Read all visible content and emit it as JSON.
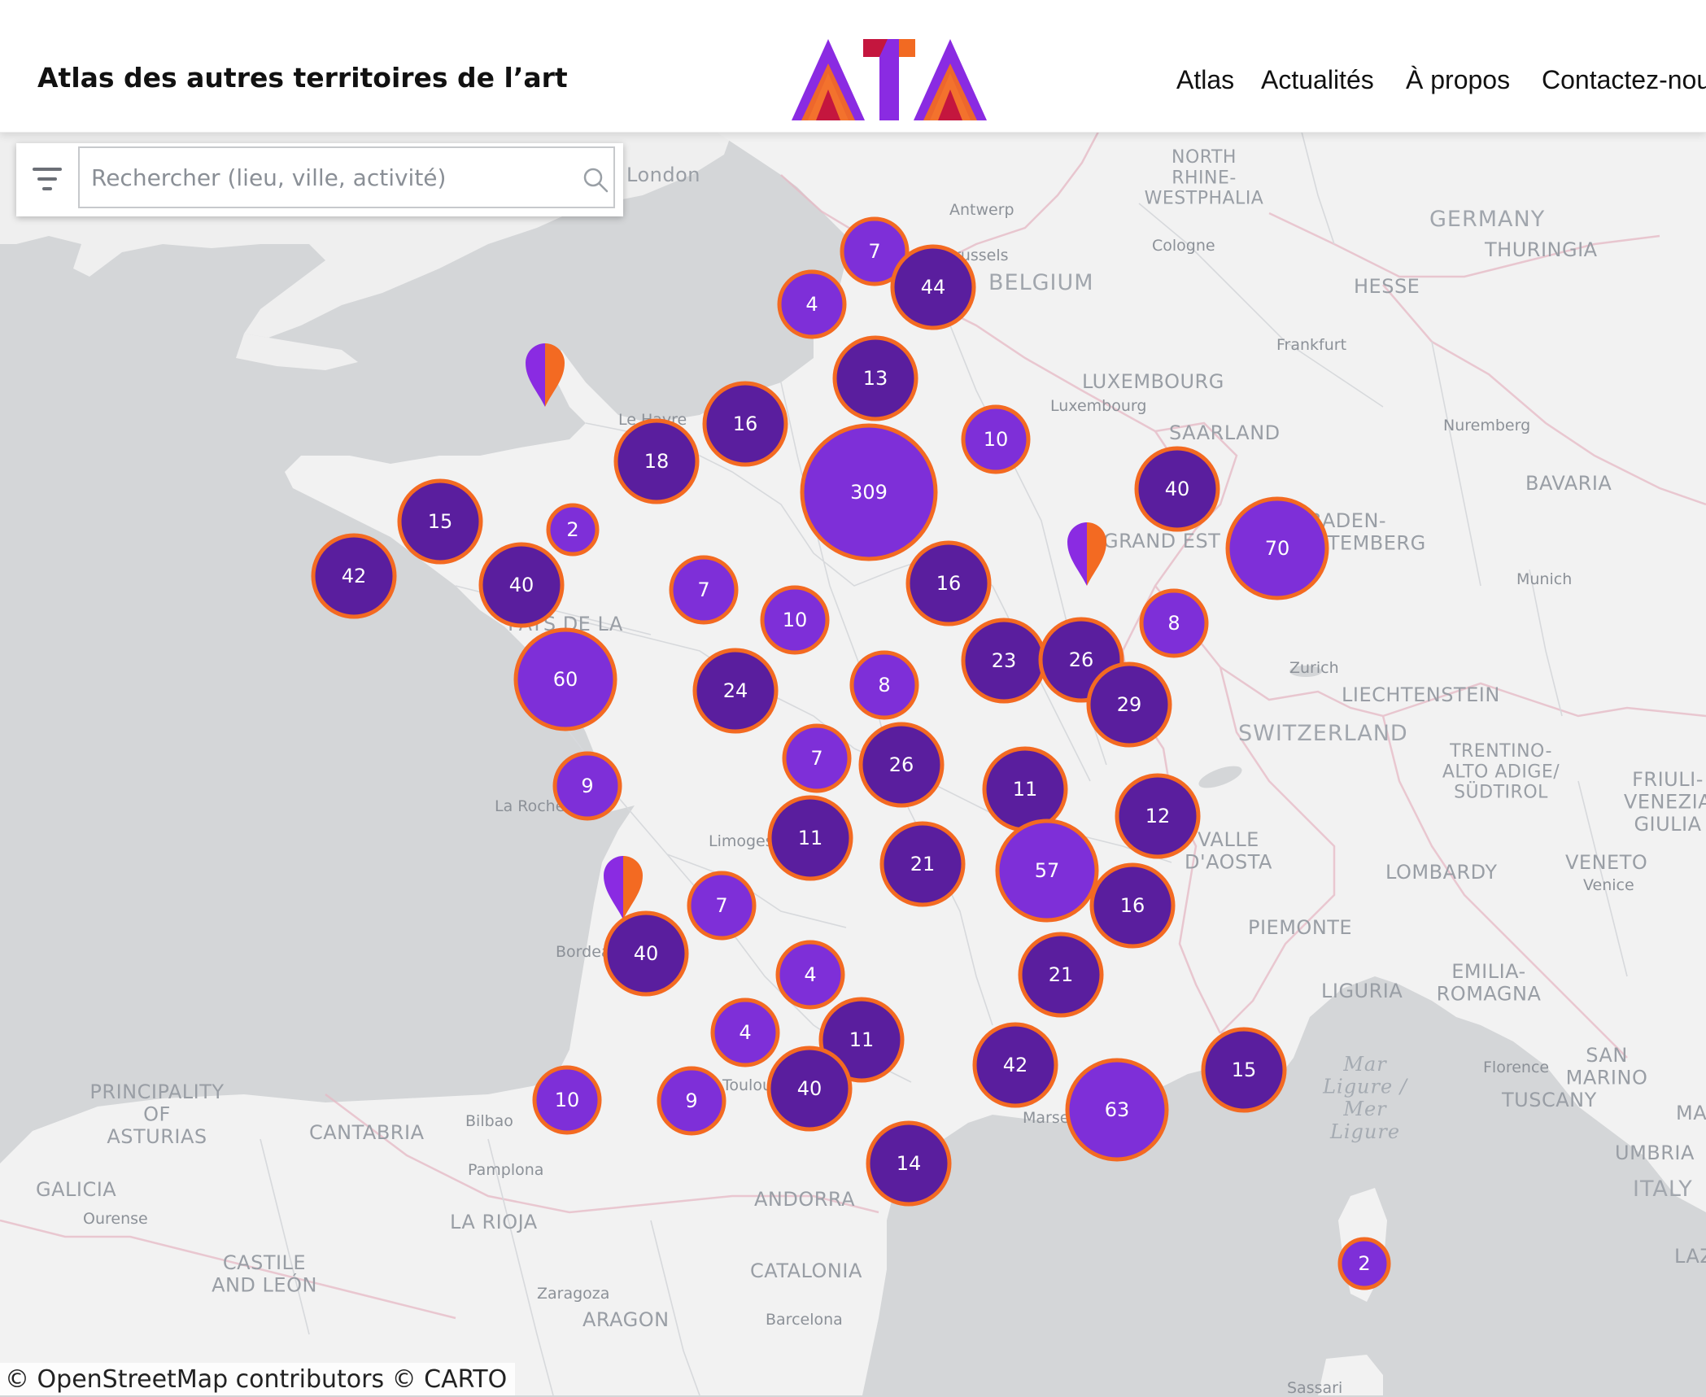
{
  "header": {
    "site_title": "Atlas des autres territoires de l’art",
    "logo_text": "ATA",
    "nav": [
      {
        "label": "Atlas"
      },
      {
        "label": "Actualités"
      },
      {
        "label": "À propos"
      },
      {
        "label": "Contactez-nous"
      }
    ]
  },
  "search": {
    "placeholder": "Rechercher (lieu, ville, activité)",
    "value": ""
  },
  "attribution": "© OpenStreetMap contributors © CARTO",
  "colors": {
    "cluster_dark": "#5a1e9e",
    "cluster_light": "#7e2fd8",
    "cluster_border": "#f36a22",
    "water": "#d4d6d8",
    "land": "#f2f2f2"
  },
  "map_labels": {
    "countries": [
      "GERMANY",
      "BELGIUM",
      "LUXEMBOURG",
      "SWITZERLAND",
      "LIECHTENSTEIN",
      "ANDORRA",
      "ITALY"
    ],
    "regions": [
      "NORTH RHINE-WESTPHALIA",
      "THURINGIA",
      "HESSE",
      "SAARLAND",
      "BAVARIA",
      "BADEN-WÜRTTEMBERG",
      "GRAND EST",
      "PAYS DE LA LOIRE",
      "TRENTINO-ALTO ADIGE/SÜDTIROL",
      "VALLE D'AOSTA",
      "LOMBARDY",
      "VENETO",
      "PIEMONTE",
      "LIGURIA",
      "EMILIA-ROMAGNA",
      "TUSCANY",
      "SAN MARINO",
      "UMBRIA",
      "PRINCIPALITY OF ASTURIAS",
      "CANTABRIA",
      "GALICIA",
      "LA RIOJA",
      "CASTILE AND LEÓN",
      "CATALONIA",
      "ARAGON",
      "FRIULI-VENEZIA GIULIA",
      "MARCHE",
      "LAZIO"
    ],
    "cities": [
      "Antwerp",
      "Brussels",
      "Cologne",
      "Frankfurt",
      "Luxembourg",
      "Nuremberg",
      "Munich",
      "Zurich",
      "Venice",
      "Florence",
      "Bilbao",
      "Pamplona",
      "Ourense",
      "Zaragoza",
      "Barcelona",
      "Sassari",
      "Le Havre",
      "La Rochelle",
      "Limoges",
      "Bordeaux",
      "Toulouse",
      "Marseille",
      "London"
    ],
    "seas": [
      "Mar Ligure / Mer Ligure"
    ]
  },
  "clusters": [
    {
      "count": "7",
      "tone": "light"
    },
    {
      "count": "44",
      "tone": "dark"
    },
    {
      "count": "4",
      "tone": "light"
    },
    {
      "count": "13",
      "tone": "dark"
    },
    {
      "count": "16",
      "tone": "dark"
    },
    {
      "count": "10",
      "tone": "light"
    },
    {
      "count": "18",
      "tone": "dark"
    },
    {
      "count": "309",
      "tone": "light"
    },
    {
      "count": "40",
      "tone": "dark"
    },
    {
      "count": "15",
      "tone": "dark"
    },
    {
      "count": "2",
      "tone": "light"
    },
    {
      "count": "70",
      "tone": "light"
    },
    {
      "count": "42",
      "tone": "dark"
    },
    {
      "count": "40",
      "tone": "dark"
    },
    {
      "count": "7",
      "tone": "light"
    },
    {
      "count": "16",
      "tone": "dark"
    },
    {
      "count": "10",
      "tone": "light"
    },
    {
      "count": "8",
      "tone": "light"
    },
    {
      "count": "60",
      "tone": "light"
    },
    {
      "count": "24",
      "tone": "dark"
    },
    {
      "count": "8",
      "tone": "light"
    },
    {
      "count": "23",
      "tone": "dark"
    },
    {
      "count": "26",
      "tone": "dark"
    },
    {
      "count": "29",
      "tone": "dark"
    },
    {
      "count": "7",
      "tone": "light"
    },
    {
      "count": "26",
      "tone": "dark"
    },
    {
      "count": "9",
      "tone": "light"
    },
    {
      "count": "11",
      "tone": "dark"
    },
    {
      "count": "12",
      "tone": "dark"
    },
    {
      "count": "11",
      "tone": "dark"
    },
    {
      "count": "21",
      "tone": "dark"
    },
    {
      "count": "57",
      "tone": "light"
    },
    {
      "count": "16",
      "tone": "dark"
    },
    {
      "count": "7",
      "tone": "light"
    },
    {
      "count": "40",
      "tone": "dark"
    },
    {
      "count": "4",
      "tone": "light"
    },
    {
      "count": "21",
      "tone": "dark"
    },
    {
      "count": "4",
      "tone": "light"
    },
    {
      "count": "11",
      "tone": "dark"
    },
    {
      "count": "42",
      "tone": "dark"
    },
    {
      "count": "10",
      "tone": "light"
    },
    {
      "count": "9",
      "tone": "light"
    },
    {
      "count": "40",
      "tone": "dark"
    },
    {
      "count": "63",
      "tone": "light"
    },
    {
      "count": "15",
      "tone": "dark"
    },
    {
      "count": "14",
      "tone": "dark"
    },
    {
      "count": "2",
      "tone": "light"
    }
  ],
  "pins": [
    {
      "name": "pin-normandy-coast"
    },
    {
      "name": "pin-grand-est"
    },
    {
      "name": "pin-bordeaux-coast"
    }
  ]
}
